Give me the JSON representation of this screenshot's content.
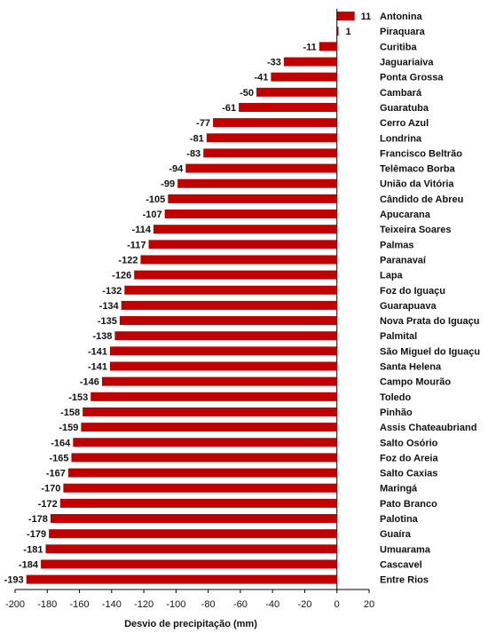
{
  "chart_data": {
    "type": "bar",
    "orientation": "horizontal",
    "categories": [
      "Antonina",
      "Piraquara",
      "Curitiba",
      "Jaguariaiva",
      "Ponta Grossa",
      "Cambará",
      "Guaratuba",
      "Cerro Azul",
      "Londrina",
      "Francisco Beltrão",
      "Telêmaco Borba",
      "União da Vitória",
      "Cândido de Abreu",
      "Apucarana",
      "Teixeira Soares",
      "Palmas",
      "Paranavaí",
      "Lapa",
      "Foz do Iguaçu",
      "Guarapuava",
      "Nova Prata do Iguaçu",
      "Palmital",
      "São Miguel do Iguaçu",
      "Santa Helena",
      "Campo Mourão",
      "Toledo",
      "Pinhão",
      "Assis Chateaubriand",
      "Salto Osório",
      "Foz do Areia",
      "Salto Caxias",
      "Maringá",
      "Pato Branco",
      "Palotina",
      "Guaíra",
      "Umuarama",
      "Cascavel",
      "Entre Rios"
    ],
    "values": [
      11,
      1,
      -11,
      -33,
      -41,
      -50,
      -61,
      -77,
      -81,
      -83,
      -94,
      -99,
      -105,
      -107,
      -114,
      -117,
      -122,
      -126,
      -132,
      -134,
      -135,
      -138,
      -141,
      -141,
      -146,
      -153,
      -158,
      -159,
      -164,
      -165,
      -167,
      -170,
      -172,
      -178,
      -179,
      -181,
      -184,
      -193
    ],
    "xlabel": "Desvio de precipitação (mm)",
    "ylabel": "",
    "title": "",
    "xlim": [
      -200,
      20
    ],
    "xticks": [
      -200,
      -180,
      -160,
      -140,
      -120,
      -100,
      -80,
      -60,
      -40,
      -20,
      0,
      20
    ],
    "grid": false,
    "bar_color": "#c00000"
  }
}
